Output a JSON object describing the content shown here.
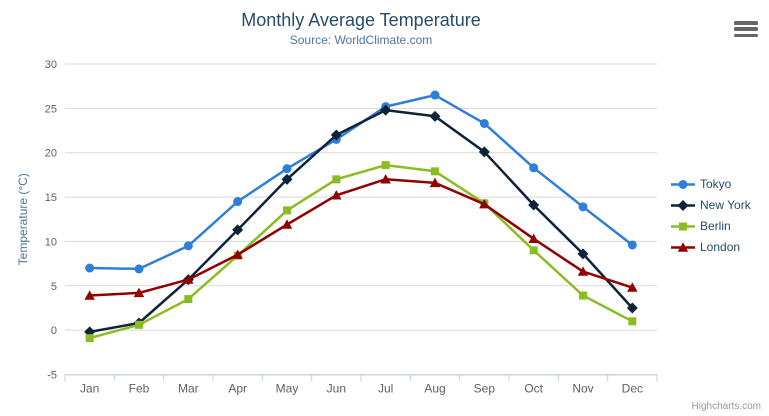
{
  "credits": "Highcharts.com",
  "chart_data": {
    "type": "line",
    "title": "Monthly Average Temperature",
    "subtitle": "Source: WorldClimate.com",
    "xlabel": "",
    "ylabel": "Temperature (°C)",
    "ylim": [
      -5,
      30
    ],
    "ytick_interval": 5,
    "grid": true,
    "legend_position": "right",
    "categories": [
      "Jan",
      "Feb",
      "Mar",
      "Apr",
      "May",
      "Jun",
      "Jul",
      "Aug",
      "Sep",
      "Oct",
      "Nov",
      "Dec"
    ],
    "series": [
      {
        "name": "Tokyo",
        "color": "#2f7ed8",
        "marker": "circle",
        "values": [
          7.0,
          6.9,
          9.5,
          14.5,
          18.2,
          21.5,
          25.2,
          26.5,
          23.3,
          18.3,
          13.9,
          9.6
        ]
      },
      {
        "name": "New York",
        "color": "#0d233a",
        "marker": "diamond",
        "values": [
          -0.2,
          0.8,
          5.7,
          11.3,
          17.0,
          22.0,
          24.8,
          24.1,
          20.1,
          14.1,
          8.6,
          2.5
        ]
      },
      {
        "name": "Berlin",
        "color": "#8bbc21",
        "marker": "square",
        "values": [
          -0.9,
          0.6,
          3.5,
          8.4,
          13.5,
          17.0,
          18.6,
          17.9,
          14.3,
          9.0,
          3.9,
          1.0
        ]
      },
      {
        "name": "London",
        "color": "#910000",
        "marker": "triangle",
        "values": [
          3.9,
          4.2,
          5.7,
          8.5,
          11.9,
          15.2,
          17.0,
          16.6,
          14.2,
          10.3,
          6.6,
          4.8
        ]
      }
    ],
    "axis_colors": {
      "grid_line": "#d8d8d8",
      "axis_line": "#c0d0e0",
      "tick_label": "#606060",
      "axis_title": "#4d759e"
    }
  }
}
